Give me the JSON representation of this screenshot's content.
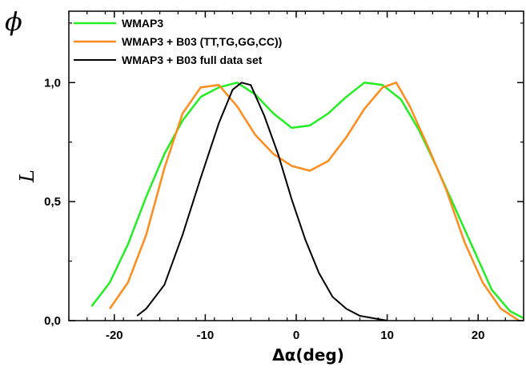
{
  "chart_data": {
    "type": "line",
    "corner_label": "ϕ",
    "title": "",
    "xlabel": "Δα(deg)",
    "ylabel": "L",
    "xlim": [
      -25,
      25
    ],
    "ylim": [
      0,
      1.3
    ],
    "x_ticks": [
      -20,
      -10,
      0,
      10,
      20
    ],
    "x_tick_labels": [
      "-20",
      "-10",
      "0",
      "10",
      "20"
    ],
    "y_ticks": [
      0,
      0.5,
      1.0
    ],
    "y_tick_labels": [
      "0,0",
      "0,5",
      "1,0"
    ],
    "grid": false,
    "legend_position": "top-left",
    "series": [
      {
        "name": "WMAP3",
        "color": "#22ee22",
        "points": [
          [
            -22.5,
            0.06
          ],
          [
            -20.5,
            0.16
          ],
          [
            -18.5,
            0.32
          ],
          [
            -16.5,
            0.52
          ],
          [
            -14.5,
            0.7
          ],
          [
            -12.5,
            0.84
          ],
          [
            -10.5,
            0.94
          ],
          [
            -8.5,
            0.98
          ],
          [
            -6.5,
            1.0
          ],
          [
            -4.5,
            0.95
          ],
          [
            -2.5,
            0.87
          ],
          [
            -0.5,
            0.81
          ],
          [
            1.5,
            0.82
          ],
          [
            3.5,
            0.87
          ],
          [
            5.5,
            0.94
          ],
          [
            7.5,
            1.0
          ],
          [
            9.5,
            0.99
          ],
          [
            11.5,
            0.93
          ],
          [
            13.5,
            0.8
          ],
          [
            15.5,
            0.64
          ],
          [
            17.5,
            0.47
          ],
          [
            19.5,
            0.3
          ],
          [
            21.5,
            0.13
          ],
          [
            23.5,
            0.04
          ],
          [
            25.5,
            0.0
          ]
        ]
      },
      {
        "name": "WMAP3 + B03 (TT,TG,GG,CC))",
        "color": "#ff8c1a",
        "points": [
          [
            -20.5,
            0.05
          ],
          [
            -18.5,
            0.16
          ],
          [
            -16.5,
            0.36
          ],
          [
            -14.5,
            0.64
          ],
          [
            -12.5,
            0.87
          ],
          [
            -10.5,
            0.98
          ],
          [
            -8.5,
            0.99
          ],
          [
            -6.5,
            0.9
          ],
          [
            -4.5,
            0.78
          ],
          [
            -2.5,
            0.7
          ],
          [
            -0.5,
            0.65
          ],
          [
            1.5,
            0.63
          ],
          [
            3.5,
            0.67
          ],
          [
            5.5,
            0.77
          ],
          [
            7.5,
            0.89
          ],
          [
            9.5,
            0.98
          ],
          [
            11,
            1.0
          ],
          [
            12.5,
            0.9
          ],
          [
            14.5,
            0.73
          ],
          [
            16.5,
            0.55
          ],
          [
            18.5,
            0.33
          ],
          [
            20.5,
            0.16
          ],
          [
            22.5,
            0.05
          ],
          [
            24.5,
            0.0
          ]
        ]
      },
      {
        "name": "WMAP3 + B03 full data set",
        "color": "#000000",
        "points": [
          [
            -17.5,
            0.02
          ],
          [
            -16.5,
            0.05
          ],
          [
            -14.5,
            0.15
          ],
          [
            -12.5,
            0.36
          ],
          [
            -10.5,
            0.6
          ],
          [
            -8.5,
            0.83
          ],
          [
            -7,
            0.97
          ],
          [
            -6,
            1.0
          ],
          [
            -5,
            0.99
          ],
          [
            -3.5,
            0.86
          ],
          [
            -2,
            0.7
          ],
          [
            -0.5,
            0.51
          ],
          [
            1,
            0.34
          ],
          [
            2.5,
            0.2
          ],
          [
            4,
            0.1
          ],
          [
            5.5,
            0.05
          ],
          [
            7,
            0.02
          ],
          [
            8.5,
            0.01
          ],
          [
            10,
            0.0
          ]
        ]
      }
    ]
  }
}
